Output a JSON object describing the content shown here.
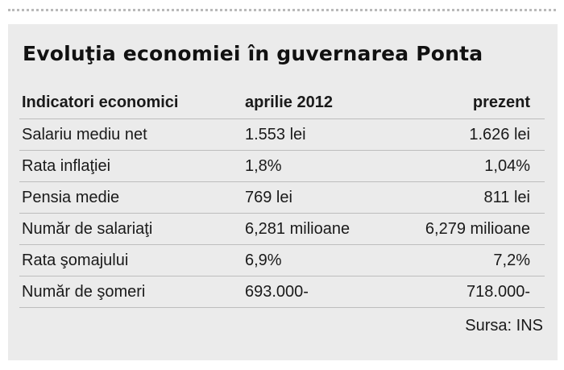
{
  "title": "Evoluţia economiei în guvernarea Ponta",
  "table": {
    "headers": [
      "Indicatori economici",
      "aprilie 2012",
      "prezent"
    ],
    "rows": [
      [
        "Salariu mediu net",
        "1.553 lei",
        "1.626 lei"
      ],
      [
        "Rata inflaţiei",
        "1,8%",
        "1,04%"
      ],
      [
        "Pensia medie",
        "769 lei",
        "811 lei"
      ],
      [
        "Număr de salariaţi",
        "6,281 milioane",
        "6,279 milioane"
      ],
      [
        "Rata şomajului",
        "6,9%",
        "7,2%"
      ],
      [
        "Număr de şomeri",
        "693.000-",
        "718.000-"
      ]
    ]
  },
  "source": "Sursa: INS"
}
